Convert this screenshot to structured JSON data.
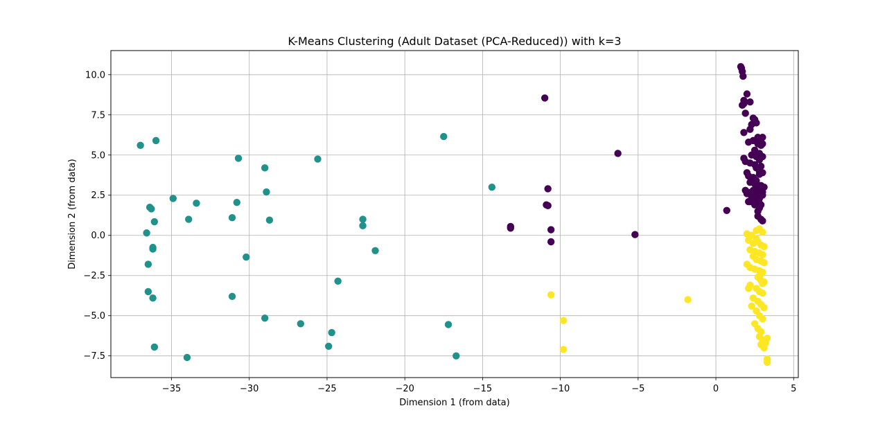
{
  "chart_data": {
    "type": "scatter",
    "title": "K-Means Clustering (Adult Dataset (PCA-Reduced)) with k=3",
    "xlabel": "Dimension 1 (from data)",
    "ylabel": "Dimension 2 (from data)",
    "xlim": [
      -38.9,
      5.3
    ],
    "ylim": [
      -8.85,
      11.5
    ],
    "xticks": [
      -35,
      -30,
      -25,
      -20,
      -15,
      -10,
      -5,
      0,
      5
    ],
    "yticks": [
      -7.5,
      -5.0,
      -2.5,
      0.0,
      2.5,
      5.0,
      7.5,
      10.0
    ],
    "xtick_labels": [
      "−35",
      "−30",
      "−25",
      "−20",
      "−15",
      "−10",
      "−5",
      "0",
      "5"
    ],
    "ytick_labels": [
      "−7.5",
      "−5.0",
      "−2.5",
      "0.0",
      "2.5",
      "5.0",
      "7.5",
      "10.0"
    ],
    "grid": true,
    "legend": "none",
    "series": [
      {
        "color": "#440154",
        "x": [
          -11.0,
          -6.3,
          -5.2,
          0.7,
          -10.8,
          -10.9,
          -10.8,
          -13.2,
          -13.2,
          -10.6,
          -10.6,
          1.6,
          1.65,
          1.7,
          1.75,
          1.8,
          2.0,
          1.7,
          1.9,
          2.2,
          1.8,
          2.4,
          2.5,
          2.3,
          2.6,
          1.8,
          2.2,
          2.7,
          2.8,
          3.0,
          2.1,
          2.4,
          2.7,
          2.9,
          3.0,
          2.5,
          2.8,
          2.3,
          2.6,
          1.8,
          1.9,
          2.2,
          2.5,
          2.8,
          3.0,
          2.6,
          2.8,
          2.9,
          2.0,
          2.1,
          2.4,
          2.6,
          2.8,
          3.0,
          2.2,
          2.5,
          2.7,
          2.9,
          3.1,
          1.9,
          2.3,
          2.7,
          3.0,
          2.4,
          2.6,
          2.8,
          3.0,
          2.1,
          2.6,
          2.8,
          2.9,
          2.0,
          2.5,
          2.8,
          2.7,
          2.2,
          2.4,
          2.0,
          2.7,
          2.9,
          3.0,
          2.5,
          2.3
        ],
        "y": [
          8.55,
          5.1,
          0.05,
          1.55,
          2.9,
          1.9,
          1.85,
          0.55,
          0.45,
          0.35,
          -0.4,
          10.5,
          10.4,
          10.2,
          9.9,
          8.4,
          8.8,
          8.1,
          7.6,
          8.3,
          8.2,
          7.3,
          7.2,
          6.9,
          7.0,
          6.4,
          6.6,
          6.1,
          6.0,
          6.1,
          5.8,
          5.9,
          5.7,
          5.6,
          5.7,
          5.3,
          5.1,
          5.0,
          4.9,
          4.8,
          4.6,
          4.5,
          4.4,
          4.7,
          4.9,
          4.2,
          4.0,
          4.3,
          3.9,
          3.7,
          3.6,
          3.4,
          3.8,
          3.9,
          3.3,
          3.2,
          3.0,
          3.1,
          3.0,
          2.8,
          2.7,
          2.6,
          2.7,
          2.5,
          2.4,
          2.3,
          2.5,
          2.1,
          2.2,
          2.0,
          1.9,
          2.6,
          1.9,
          1.7,
          1.2,
          2.1,
          2.8,
          2.7,
          1.5,
          1.0,
          0.9,
          2.0,
          2.4
        ]
      },
      {
        "color": "#21918c",
        "x": [
          -37.0,
          -36.0,
          -34.9,
          -36.4,
          -36.3,
          -33.4,
          -33.9,
          -36.1,
          -36.6,
          -36.2,
          -36.2,
          -36.5,
          -36.5,
          -36.2,
          -36.1,
          -34.0,
          -30.7,
          -29.0,
          -30.8,
          -31.1,
          -28.9,
          -28.7,
          -30.2,
          -31.1,
          -29.0,
          -26.7,
          -25.6,
          -24.3,
          -24.7,
          -24.9,
          -22.7,
          -22.7,
          -21.9,
          -17.5,
          -17.2,
          -16.7,
          -14.4
        ],
        "y": [
          5.6,
          5.9,
          2.3,
          1.75,
          1.65,
          2.0,
          1.0,
          0.85,
          0.15,
          -0.75,
          -0.85,
          -1.8,
          -3.5,
          -3.9,
          -6.95,
          -7.6,
          4.8,
          4.2,
          2.05,
          1.1,
          2.7,
          0.95,
          -1.35,
          -3.8,
          -5.15,
          -5.5,
          4.75,
          -2.85,
          -6.05,
          -6.9,
          1.0,
          0.6,
          -0.95,
          6.15,
          -5.55,
          -7.5,
          3.0
        ]
      },
      {
        "color": "#fde725",
        "x": [
          -10.6,
          -9.8,
          -9.8,
          -1.8,
          2.0,
          2.3,
          2.6,
          2.8,
          3.0,
          2.1,
          2.4,
          2.7,
          2.9,
          3.1,
          2.2,
          2.5,
          2.8,
          3.0,
          2.6,
          2.9,
          3.1,
          2.0,
          2.2,
          2.5,
          2.8,
          3.0,
          2.7,
          2.9,
          3.1,
          2.2,
          2.6,
          2.8,
          3.0,
          2.4,
          2.7,
          2.9,
          3.1,
          2.3,
          2.6,
          2.8,
          3.0,
          2.5,
          2.7,
          2.9,
          2.8,
          3.0,
          3.2,
          2.9,
          3.1,
          3.3,
          3.2,
          3.3,
          3.3,
          2.6,
          3.0,
          2.4,
          2.9,
          2.1
        ],
        "y": [
          -3.7,
          -5.3,
          -7.1,
          -4.0,
          0.1,
          0.0,
          0.3,
          0.4,
          0.2,
          -0.3,
          -0.5,
          -0.4,
          -0.6,
          -0.7,
          -0.9,
          -1.0,
          -1.1,
          -1.2,
          -1.5,
          -1.6,
          -1.7,
          -1.8,
          -2.0,
          -2.1,
          -2.2,
          -2.3,
          -2.6,
          -2.8,
          -2.9,
          -3.1,
          -3.3,
          -3.5,
          -3.6,
          -3.9,
          -4.1,
          -4.3,
          -4.5,
          -4.4,
          -4.7,
          -5.0,
          -5.2,
          -5.5,
          -5.8,
          -6.0,
          -6.3,
          -6.5,
          -6.7,
          -6.8,
          -7.0,
          -6.4,
          -6.6,
          -7.7,
          -7.9,
          -0.2,
          -3.0,
          -1.3,
          -2.4,
          -3.3
        ]
      }
    ]
  }
}
